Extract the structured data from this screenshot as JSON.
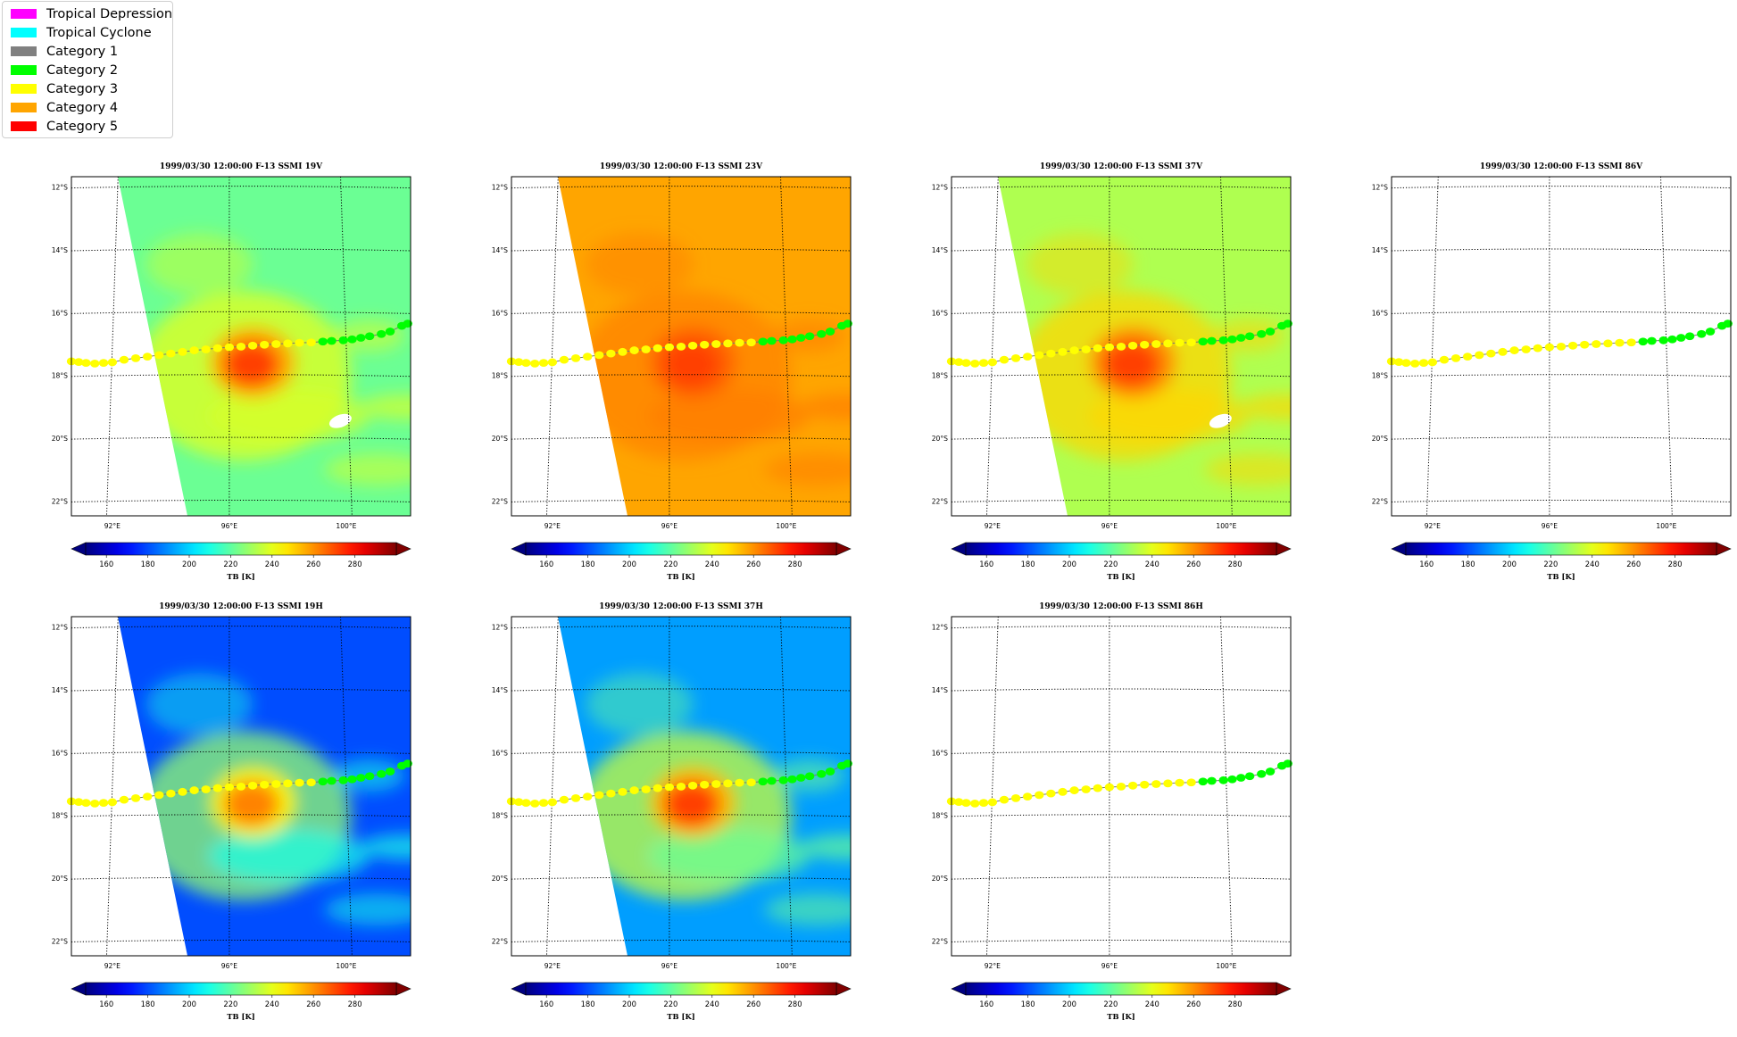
{
  "legend": {
    "items": [
      {
        "label": "Tropical Depression",
        "color": "#ff00ff"
      },
      {
        "label": "Tropical Cyclone",
        "color": "#00ffff"
      },
      {
        "label": "Category 1",
        "color": "#808080"
      },
      {
        "label": "Category 2",
        "color": "#00ff00"
      },
      {
        "label": "Category 3",
        "color": "#ffff00"
      },
      {
        "label": "Category 4",
        "color": "#ffa500"
      },
      {
        "label": "Category 5",
        "color": "#ff0000"
      }
    ]
  },
  "axes": {
    "lat_ticks": [
      "12°S",
      "14°S",
      "16°S",
      "18°S",
      "20°S",
      "22°S"
    ],
    "lon_ticks": [
      "92°E",
      "96°E",
      "100°E"
    ]
  },
  "colorbar": {
    "ticks": [
      "160",
      "180",
      "200",
      "220",
      "240",
      "260",
      "280"
    ],
    "label": "TB [K]",
    "colormap": "jet",
    "range": [
      150,
      300
    ],
    "extend": "both"
  },
  "panels": [
    {
      "title": "1999/03/30 12:00:00  F-13 SSMI 19V",
      "channel": "19V",
      "field": {
        "background": 222,
        "core": 272,
        "rain": 238,
        "ring": 240
      },
      "missing_patch": true
    },
    {
      "title": "1999/03/30 12:00:00  F-13 SSMI 23V",
      "channel": "23V",
      "field": {
        "background": 257,
        "core": 272,
        "rain": 263,
        "ring": 262
      },
      "missing_patch": false
    },
    {
      "title": "1999/03/30 12:00:00  F-13 SSMI 37V",
      "channel": "37V",
      "field": {
        "background": 232,
        "core": 272,
        "rain": 250,
        "ring": 250
      },
      "missing_patch": true
    },
    {
      "title": "1999/03/30 12:00:00  F-13 SSMI 86V",
      "channel": "86V",
      "field": null,
      "missing_patch": false
    },
    {
      "title": "1999/03/30 12:00:00  F-13 SSMI 19H",
      "channel": "19H",
      "field": {
        "background": 180,
        "core": 262,
        "rain": 210,
        "ring": 228
      },
      "missing_patch": false
    },
    {
      "title": "1999/03/30 12:00:00  F-13 SSMI 37H",
      "channel": "37H",
      "field": {
        "background": 192,
        "core": 272,
        "rain": 222,
        "ring": 236
      },
      "missing_patch": false
    },
    {
      "title": "1999/03/30 12:00:00  F-13 SSMI 86H",
      "channel": "86H",
      "field": null,
      "missing_patch": false
    }
  ],
  "storm_track": [
    {
      "lon": 90.6,
      "lat": -17.55,
      "cat": 3
    },
    {
      "lon": 90.85,
      "lat": -17.57,
      "cat": 3
    },
    {
      "lon": 91.1,
      "lat": -17.6,
      "cat": 3
    },
    {
      "lon": 91.4,
      "lat": -17.62,
      "cat": 3
    },
    {
      "lon": 91.7,
      "lat": -17.6,
      "cat": 3
    },
    {
      "lon": 92.0,
      "lat": -17.58,
      "cat": 3
    },
    {
      "lon": 92.4,
      "lat": -17.5,
      "cat": 3
    },
    {
      "lon": 92.8,
      "lat": -17.45,
      "cat": 3
    },
    {
      "lon": 93.2,
      "lat": -17.4,
      "cat": 3
    },
    {
      "lon": 93.6,
      "lat": -17.35,
      "cat": 3
    },
    {
      "lon": 94.0,
      "lat": -17.3,
      "cat": 3
    },
    {
      "lon": 94.4,
      "lat": -17.25,
      "cat": 3
    },
    {
      "lon": 94.8,
      "lat": -17.2,
      "cat": 3
    },
    {
      "lon": 95.2,
      "lat": -17.17,
      "cat": 3
    },
    {
      "lon": 95.6,
      "lat": -17.13,
      "cat": 3
    },
    {
      "lon": 96.0,
      "lat": -17.1,
      "cat": 3
    },
    {
      "lon": 96.4,
      "lat": -17.08,
      "cat": 3
    },
    {
      "lon": 96.8,
      "lat": -17.05,
      "cat": 3
    },
    {
      "lon": 97.2,
      "lat": -17.02,
      "cat": 3
    },
    {
      "lon": 97.6,
      "lat": -17.0,
      "cat": 3
    },
    {
      "lon": 98.0,
      "lat": -16.98,
      "cat": 3
    },
    {
      "lon": 98.4,
      "lat": -16.96,
      "cat": 3
    },
    {
      "lon": 98.8,
      "lat": -16.95,
      "cat": 3
    },
    {
      "lon": 99.2,
      "lat": -16.92,
      "cat": 2
    },
    {
      "lon": 99.5,
      "lat": -16.9,
      "cat": 2
    },
    {
      "lon": 99.9,
      "lat": -16.88,
      "cat": 2
    },
    {
      "lon": 100.2,
      "lat": -16.85,
      "cat": 2
    },
    {
      "lon": 100.5,
      "lat": -16.8,
      "cat": 2
    },
    {
      "lon": 100.8,
      "lat": -16.75,
      "cat": 2
    },
    {
      "lon": 101.2,
      "lat": -16.68,
      "cat": 2
    },
    {
      "lon": 101.5,
      "lat": -16.6,
      "cat": 2
    },
    {
      "lon": 101.9,
      "lat": -16.42,
      "cat": 2
    },
    {
      "lon": 102.1,
      "lat": -16.35,
      "cat": 2
    }
  ]
}
